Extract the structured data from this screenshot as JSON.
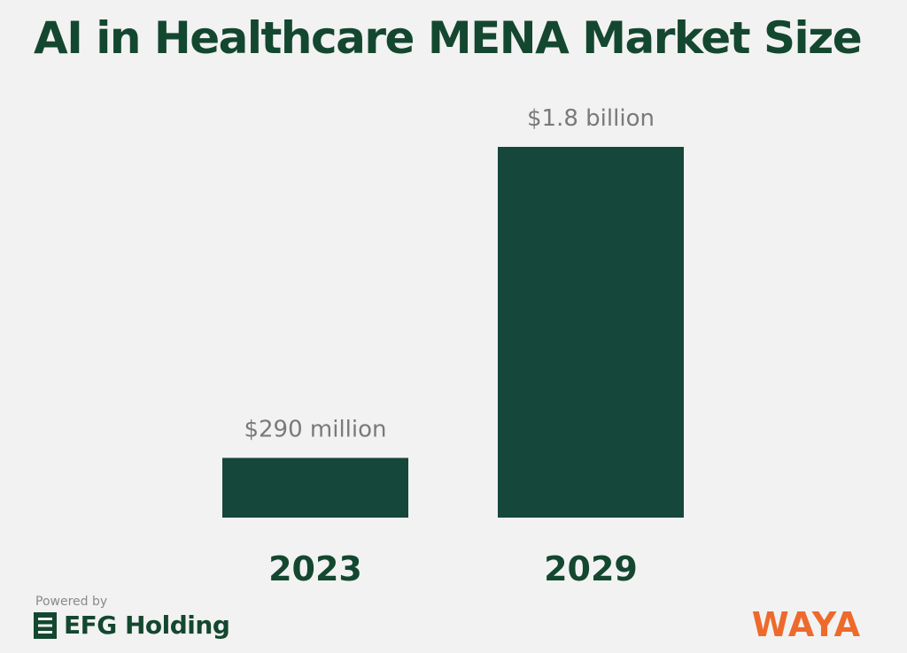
{
  "chart_data": {
    "type": "bar",
    "title": "AI in Healthcare MENA Market Size",
    "categories": [
      "2023",
      "2029"
    ],
    "values": [
      0.29,
      1.8
    ],
    "unit": "USD billion",
    "data_labels": [
      "$290 million",
      "$1.8 billion"
    ],
    "xlabel": "",
    "ylabel": "",
    "ylim": [
      0,
      1.8
    ],
    "grid": false,
    "legend": "none"
  },
  "colors": {
    "bar": "#15473a",
    "title": "#14472f",
    "data_label": "#7a7a7a",
    "background": "#f2f2f2",
    "waya": "#ee6a2c"
  },
  "footer": {
    "powered_by": "Powered by",
    "efg": "EFG Holding",
    "efg_icon": "efg-logo-icon",
    "waya": "WAYA"
  }
}
